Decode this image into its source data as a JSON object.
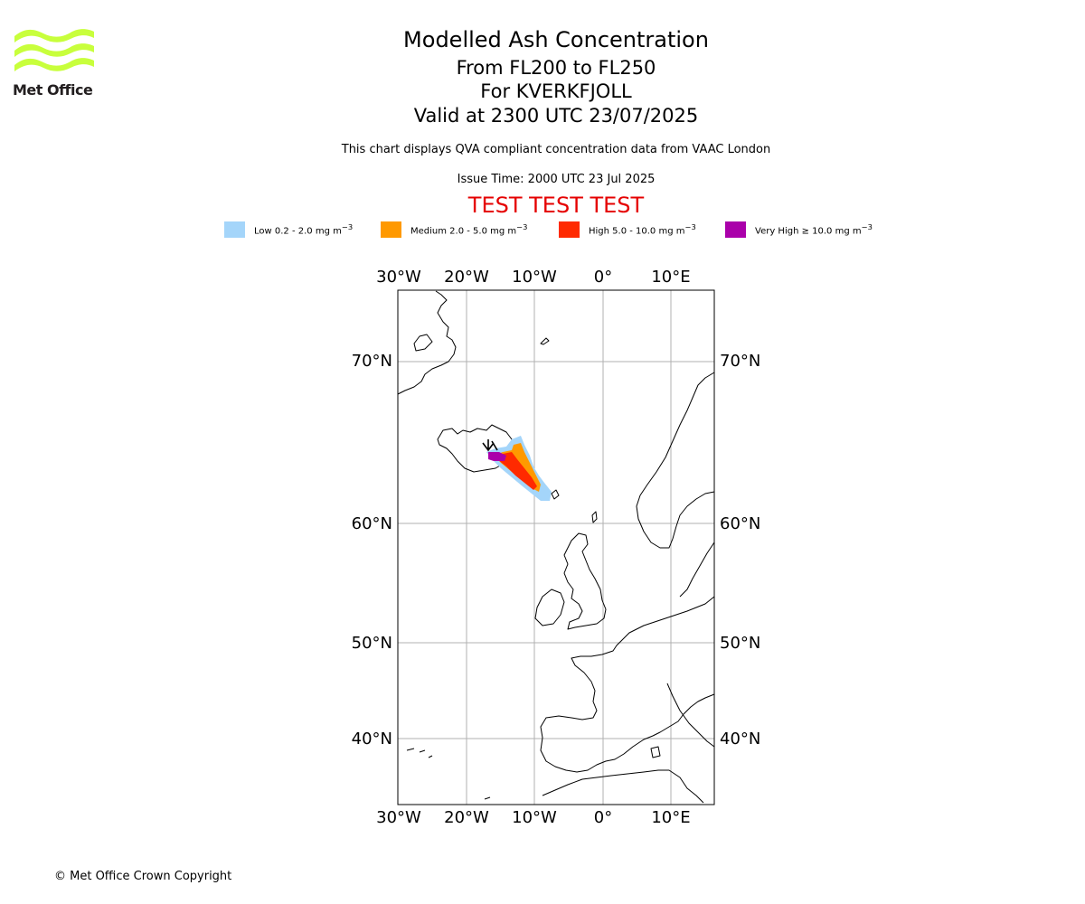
{
  "logo": {
    "text": "Met Office",
    "color": "#c8ff3c"
  },
  "header": {
    "title": "Modelled Ash Concentration",
    "levels": "From FL200 to FL250",
    "volcano": "For KVERKFJOLL",
    "valid": "Valid at 2300 UTC 23/07/2025",
    "description": "This chart displays QVA compliant concentration data from VAAC London",
    "issue": "Issue Time: 2000 UTC 23 Jul 2025",
    "test_banner": "TEST TEST TEST"
  },
  "legend": [
    {
      "label": "Low 0.2 - 2.0 mg m",
      "exp": "−3",
      "color": "#a4d5fa"
    },
    {
      "label": "Medium 2.0 - 5.0 mg m",
      "exp": "−3",
      "color": "#ff9900"
    },
    {
      "label": "High 5.0 - 10.0 mg m",
      "exp": "−3",
      "color": "#ff2a00"
    },
    {
      "label": "Very High  ≥  10.0 mg m",
      "exp": "−3",
      "color": "#aa00aa"
    }
  ],
  "map": {
    "lon_ticks": [
      "30°W",
      "20°W",
      "10°W",
      "0°",
      "10°E"
    ],
    "lat_ticks": [
      "70°N",
      "60°N",
      "50°N",
      "40°N"
    ],
    "grid": true
  },
  "footer": {
    "copyright": "© Met Office Crown Copyright"
  }
}
